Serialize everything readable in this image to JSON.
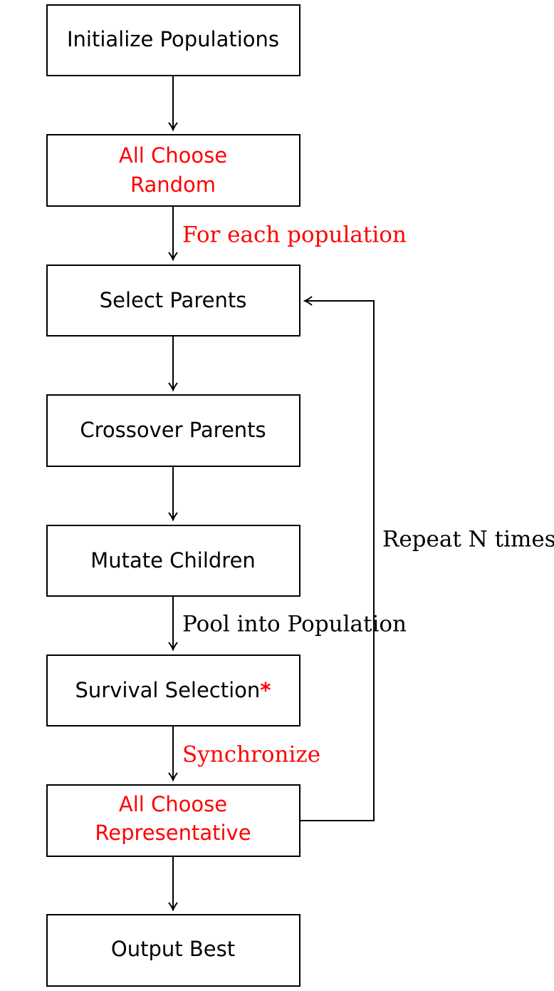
{
  "colors": {
    "black": "#000000",
    "highlight": "#ff0000"
  },
  "nodes": [
    {
      "id": "init",
      "lines": [
        "Initialize Populations"
      ],
      "color": "#000000"
    },
    {
      "id": "random",
      "lines": [
        "All Choose",
        "Random"
      ],
      "color": "#ff0000"
    },
    {
      "id": "select",
      "lines": [
        "Select Parents"
      ],
      "color": "#000000"
    },
    {
      "id": "crossover",
      "lines": [
        "Crossover Parents"
      ],
      "color": "#000000"
    },
    {
      "id": "mutate",
      "lines": [
        "Mutate Children"
      ],
      "color": "#000000"
    },
    {
      "id": "survival",
      "lines": [
        "Survival Selection"
      ],
      "suffix": "*",
      "suffix_color": "#ff0000",
      "color": "#000000"
    },
    {
      "id": "representative",
      "lines": [
        "All Choose",
        "Representative"
      ],
      "color": "#ff0000"
    },
    {
      "id": "output",
      "lines": [
        "Output Best"
      ],
      "color": "#000000"
    }
  ],
  "edge_labels": {
    "for_each": {
      "text": "For each population",
      "color": "#ff0000"
    },
    "pool": {
      "text": "Pool into Population",
      "color": "#000000"
    },
    "synchronize": {
      "text": "Synchronize",
      "color": "#ff0000"
    },
    "repeat": {
      "text": "Repeat N times",
      "color": "#000000"
    }
  }
}
